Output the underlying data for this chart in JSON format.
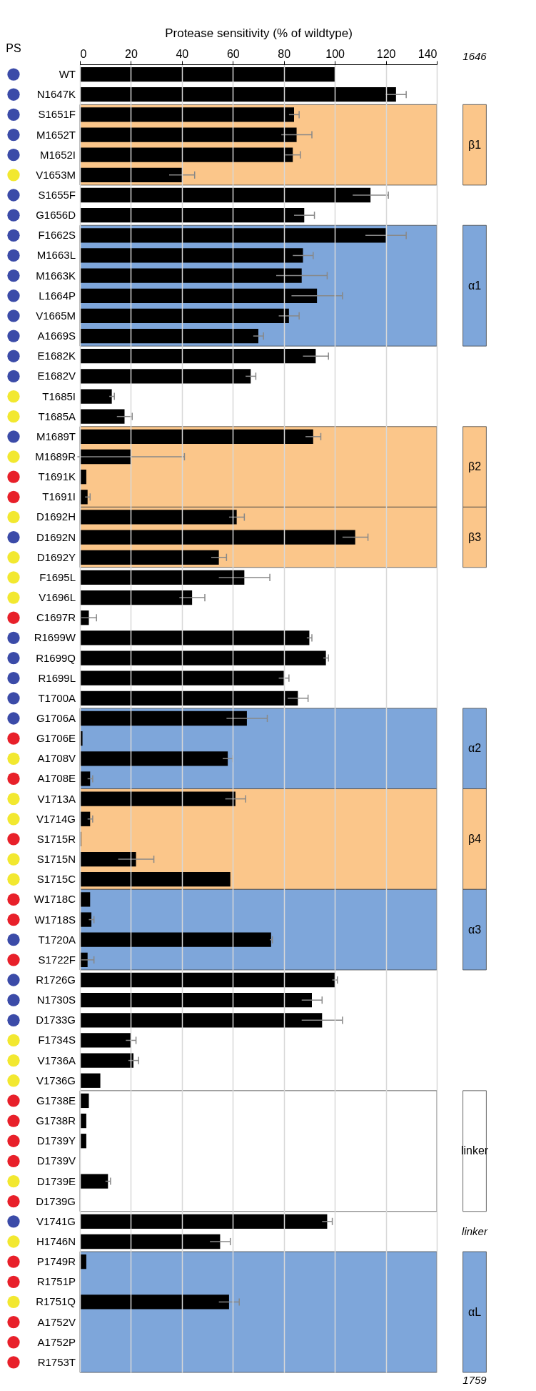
{
  "chart_data": [
    {
      "type": "other",
      "title": "PS",
      "categories": [
        null,
        null,
        null,
        null,
        null,
        null,
        null,
        null,
        null,
        null,
        null,
        null,
        null,
        null,
        null,
        null,
        null,
        null,
        null,
        null,
        null,
        null,
        null,
        null,
        null,
        null,
        null,
        null,
        null,
        null,
        null,
        null,
        null,
        null,
        null,
        null,
        null,
        null,
        null,
        null,
        null,
        null,
        null,
        null,
        null,
        null,
        null,
        null,
        null,
        null,
        null,
        null,
        null,
        null,
        null,
        null,
        null,
        null,
        null,
        null,
        null,
        null,
        null,
        null,
        null
      ],
      "colors": [
        "#3b4ba8",
        "#3b4ba8",
        "#3b4ba8",
        "#3b4ba8",
        "#3b4ba8",
        "#f2e830",
        "#3b4ba8",
        "#3b4ba8",
        "#3b4ba8",
        "#3b4ba8",
        "#3b4ba8",
        "#3b4ba8",
        "#3b4ba8",
        "#3b4ba8",
        "#3b4ba8",
        "#3b4ba8",
        "#f2e830",
        "#f2e830",
        "#3b4ba8",
        "#f2e830",
        "#e8202a",
        "#e8202a",
        "#f2e830",
        "#3b4ba8",
        "#f2e830",
        "#f2e830",
        "#f2e830",
        "#e8202a",
        "#3b4ba8",
        "#3b4ba8",
        "#3b4ba8",
        "#3b4ba8",
        "#3b4ba8",
        "#e8202a",
        "#f2e830",
        "#e8202a",
        "#f2e830",
        "#f2e830",
        "#e8202a",
        "#f2e830",
        "#f2e830",
        "#e8202a",
        "#e8202a",
        "#3b4ba8",
        "#e8202a",
        "#3b4ba8",
        "#3b4ba8",
        "#3b4ba8",
        "#f2e830",
        "#f2e830",
        "#f2e830",
        "#e8202a",
        "#e8202a",
        "#e8202a",
        "#e8202a",
        "#f2e830",
        "#e8202a",
        "#3b4ba8",
        "#f2e830",
        "#e8202a",
        "#e8202a",
        "#f2e830",
        "#e8202a",
        "#e8202a",
        "#e8202a"
      ]
    },
    {
      "type": "bar",
      "orientation": "horizontal",
      "xlabel": "Protease sensitivity (% of wildtype)",
      "categories": [
        "WT",
        "N1647K",
        "S1651F",
        "M1652T",
        "M1652I",
        "V1653M",
        "S1655F",
        "G1656D",
        "F1662S",
        "M1663L",
        "M1663K",
        "L1664P",
        "V1665M",
        "A1669S",
        "E1682K",
        "E1682V",
        "T1685I",
        "T1685A",
        "M1689T",
        "M1689R",
        "T1691K",
        "T1691I",
        "D1692H",
        "D1692N",
        "D1692Y",
        "F1695L",
        "V1696L",
        "C1697R",
        "R1699W",
        "R1699Q",
        "R1699L",
        "T1700A",
        "G1706A",
        "G1706E",
        "A1708V",
        "A1708E",
        "V1713A",
        "V1714G",
        "S1715R",
        "S1715N",
        "S1715C",
        "W1718C",
        "W1718S",
        "T1720A",
        "S1722F",
        "R1726G",
        "N1730S",
        "D1733G",
        "F1734S",
        "V1736A",
        "V1736G",
        "G1738E",
        "G1738R",
        "D1739Y",
        "D1739V",
        "D1739E",
        "D1739G",
        "V1741G",
        "H1746N",
        "P1749R",
        "R1751P",
        "R1751Q",
        "A1752V",
        "A1752P",
        "R1753T"
      ],
      "values": [
        100,
        124,
        84,
        85,
        83.5,
        40,
        114,
        88,
        120,
        87.5,
        87,
        93,
        82,
        70,
        92.5,
        67,
        12.5,
        17.5,
        91.5,
        20,
        2.5,
        3,
        61.5,
        108,
        54.5,
        64.5,
        44,
        3.5,
        90,
        96.5,
        80,
        85.5,
        65.5,
        1,
        58,
        4,
        61,
        4,
        0.5,
        22,
        59,
        4,
        4.5,
        75,
        3,
        100,
        91,
        95,
        20,
        21,
        8,
        3.5,
        2.5,
        2.5,
        0,
        11,
        0,
        97,
        55,
        2.5,
        0,
        58.5,
        0,
        0,
        0
      ],
      "errors": [
        null,
        4,
        2,
        6,
        3,
        5,
        7,
        4,
        8,
        4,
        10,
        10,
        4,
        2,
        5,
        2,
        1,
        3,
        3,
        21,
        null,
        1,
        3,
        5,
        3,
        10,
        5,
        3,
        1,
        1,
        2,
        4,
        8,
        null,
        2,
        1,
        4,
        1,
        null,
        7,
        null,
        null,
        1,
        0.5,
        2.5,
        1,
        4,
        8,
        2,
        2,
        null,
        null,
        null,
        null,
        null,
        1,
        null,
        2,
        4,
        null,
        null,
        4,
        null,
        null,
        null
      ],
      "color": "#000000",
      "xlim": [
        0,
        140
      ],
      "xticks": [
        0,
        20,
        40,
        60,
        80,
        100,
        120,
        140
      ],
      "grid": "x",
      "bands": [
        {
          "axis": "y",
          "from": "S1651F",
          "to": "V1653M",
          "label": "β1",
          "color": "#fbc68a"
        },
        {
          "axis": "y",
          "from": "F1662S",
          "to": "A1669S",
          "label": "α1",
          "color": "#7ea6da"
        },
        {
          "axis": "y",
          "from": "M1689T",
          "to": "T1691I",
          "label": "β2",
          "color": "#fbc68a"
        },
        {
          "axis": "y",
          "from": "D1692H",
          "to": "D1692Y",
          "label": "β3",
          "color": "#fbc68a"
        },
        {
          "axis": "y",
          "from": "G1706A",
          "to": "A1708E",
          "label": "α2",
          "color": "#7ea6da"
        },
        {
          "axis": "y",
          "from": "V1713A",
          "to": "S1715C",
          "label": "β4",
          "color": "#fbc68a"
        },
        {
          "axis": "y",
          "from": "W1718C",
          "to": "S1722F",
          "label": "α3",
          "color": "#7ea6da"
        },
        {
          "axis": "y",
          "from": "G1738E",
          "to": "D1739G",
          "label": "linker",
          "color": "#ffffff"
        },
        {
          "axis": "y",
          "from": "P1749R",
          "to": "R1753T",
          "label": "αL",
          "color": "#7ea6da"
        }
      ],
      "annotations": [
        "1646",
        "linker",
        "1759"
      ]
    }
  ]
}
